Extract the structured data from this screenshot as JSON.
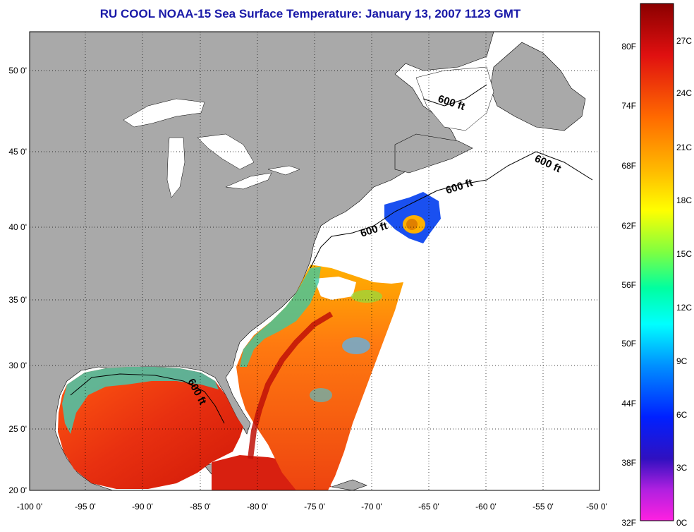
{
  "title": "RU COOL  NOAA-15  Sea Surface Temperature:  January 13, 2007 1123 GMT",
  "axes": {
    "lon_ticks": [
      "-100 0'",
      "-95 0'",
      "-90 0'",
      "-85 0'",
      "-80 0'",
      "-75 0'",
      "-70 0'",
      "-65 0'",
      "-60 0'",
      "-55 0'",
      "-50 0'"
    ],
    "lat_ticks": [
      "50 0'",
      "45 0'",
      "40 0'",
      "35 0'",
      "30 0'",
      "25 0'",
      "20 0'"
    ]
  },
  "contour_labels": [
    "600 ft",
    "600 ft",
    "600 ft",
    "600 ft",
    "600 ft"
  ],
  "colorbar": {
    "fahrenheit": [
      "80F",
      "74F",
      "68F",
      "62F",
      "56F",
      "50F",
      "44F",
      "38F",
      "32F"
    ],
    "celsius": [
      "27C",
      "24C",
      "21C",
      "18C",
      "15C",
      "12C",
      "9C",
      "6C",
      "3C",
      "0C"
    ]
  },
  "colors": {
    "land": "#a9a9a9",
    "no_data": "#ffffff",
    "title": "#1a1aa8"
  }
}
